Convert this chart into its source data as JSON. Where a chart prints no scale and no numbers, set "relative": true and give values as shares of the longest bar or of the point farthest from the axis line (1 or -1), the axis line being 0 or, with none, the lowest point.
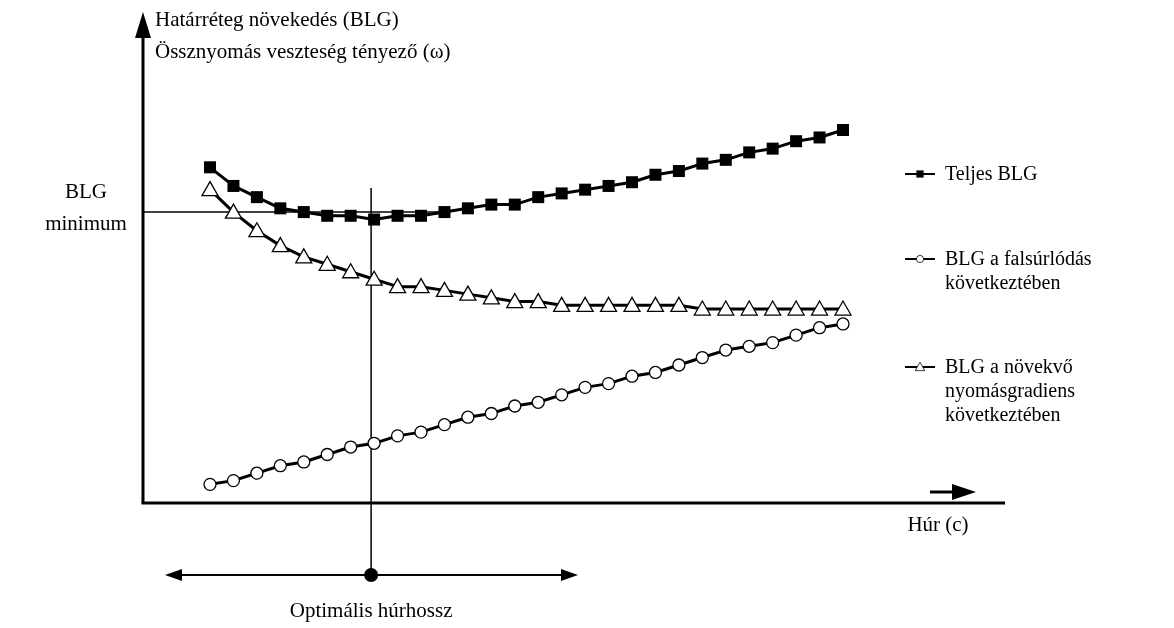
{
  "chart_data": {
    "type": "line",
    "relative": true,
    "ylabel": "Határréteg növekedés (BLG)\nÖssznyomás veszteség tényező (ω)",
    "xlabel": "Húr (c)",
    "legend": "right",
    "line_style": "solid",
    "categories": [
      null,
      null,
      null,
      null,
      null,
      null,
      null,
      null,
      null,
      null,
      null,
      null,
      null,
      null,
      null,
      null,
      null,
      null,
      null,
      null,
      null,
      null,
      null,
      null,
      null,
      null,
      null,
      null
    ],
    "series": [
      {
        "name": "Teljes BLG",
        "color": "#000000",
        "marker": "square",
        "values": [
          0.9,
          0.85,
          0.82,
          0.79,
          0.78,
          0.77,
          0.77,
          0.76,
          0.77,
          0.77,
          0.78,
          0.79,
          0.8,
          0.8,
          0.82,
          0.83,
          0.84,
          0.85,
          0.86,
          0.88,
          0.89,
          0.91,
          0.92,
          0.94,
          0.95,
          0.97,
          0.98,
          1
        ]
      },
      {
        "name": "BLG a falsúrlódás\nkövetkeztében",
        "color": "#000000",
        "marker": "circle",
        "values": [
          0.05,
          0.06,
          0.08,
          0.1,
          0.11,
          0.13,
          0.15,
          0.16,
          0.18,
          0.19,
          0.21,
          0.23,
          0.24,
          0.26,
          0.27,
          0.29,
          0.31,
          0.32,
          0.34,
          0.35,
          0.37,
          0.39,
          0.41,
          0.42,
          0.43,
          0.45,
          0.47,
          0.48
        ]
      },
      {
        "name": "BLG a növekvő\nnyomásgradiens\nkövetkeztében",
        "color": "#000000",
        "marker": "triangle",
        "values": [
          0.84,
          0.78,
          0.73,
          0.69,
          0.66,
          0.64,
          0.62,
          0.6,
          0.58,
          0.58,
          0.57,
          0.56,
          0.55,
          0.54,
          0.54,
          0.53,
          0.53,
          0.53,
          0.53,
          0.53,
          0.53,
          0.52,
          0.52,
          0.52,
          0.52,
          0.52,
          0.52,
          0.52
        ]
      }
    ],
    "ref_lines": [
      {
        "axis": "y",
        "value": 0.78,
        "label": "BLG minimum"
      }
    ],
    "annotations": [
      "Optimális húrhossz"
    ]
  }
}
